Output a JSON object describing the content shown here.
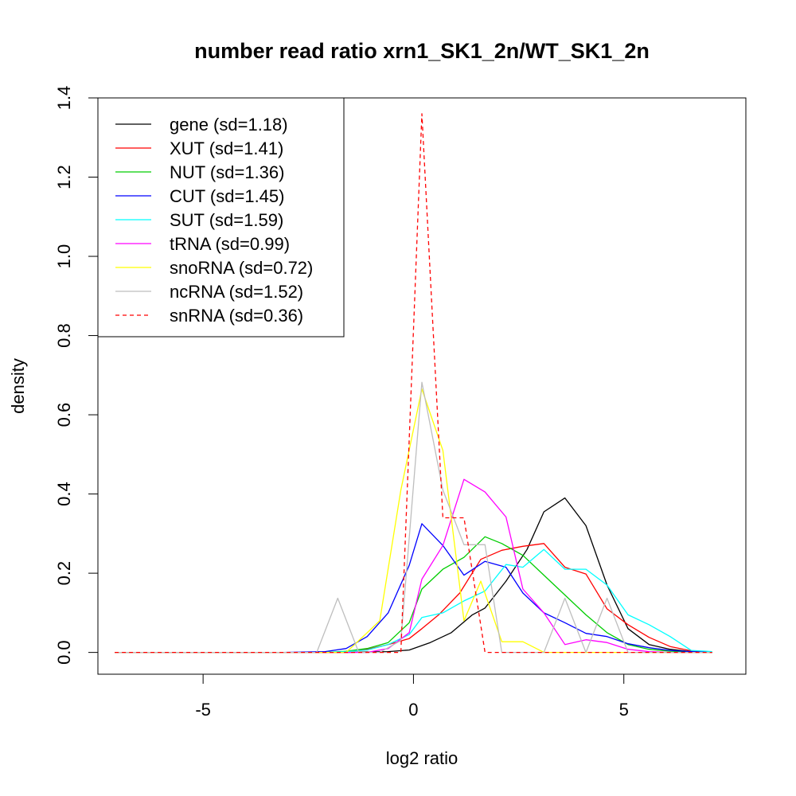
{
  "chart_data": {
    "type": "line",
    "title": "number read ratio xrn1_SK1_2n/WT_SK1_2n",
    "xlabel": "log2 ratio",
    "ylabel": "density",
    "xlim": [
      -7.5,
      7.9
    ],
    "ylim": [
      -0.055,
      1.4
    ],
    "xticks": [
      -5,
      0,
      5
    ],
    "xtick_labels": [
      "-5",
      "0",
      "5"
    ],
    "yticks": [
      0.0,
      0.2,
      0.4,
      0.6,
      0.8,
      1.0,
      1.2,
      1.4
    ],
    "ytick_labels": [
      "0.0",
      "0.2",
      "0.4",
      "0.6",
      "0.8",
      "1.0",
      "1.2",
      "1.4"
    ],
    "grid": false,
    "legend_position": "top-left",
    "series": [
      {
        "name": "gene (sd=1.18)",
        "color": "#000000",
        "dash": false,
        "x": [
          -7.1,
          -6.6,
          -6.1,
          -5.6,
          -5.1,
          -4.6,
          -4.1,
          -3.6,
          -3.1,
          -2.6,
          -2.1,
          -1.6,
          -1.1,
          -0.6,
          -0.1,
          0.4,
          0.9,
          1.4,
          1.7,
          2.2,
          2.7,
          3.1,
          3.6,
          4.1,
          4.6,
          5.1,
          5.6,
          6.1,
          6.6,
          7.1
        ],
        "y": [
          0,
          0,
          0,
          0,
          0,
          0,
          0,
          0,
          0,
          0,
          0,
          0,
          0.001,
          0.002,
          0.006,
          0.025,
          0.05,
          0.095,
          0.112,
          0.18,
          0.26,
          0.355,
          0.39,
          0.32,
          0.17,
          0.06,
          0.02,
          0.008,
          0.002,
          0
        ]
      },
      {
        "name": "XUT (sd=1.41)",
        "color": "#ff0000",
        "dash": false,
        "x": [
          -7.1,
          -6.6,
          -6.1,
          -5.6,
          -5.1,
          -4.6,
          -4.1,
          -3.6,
          -3.1,
          -2.6,
          -2.1,
          -1.6,
          -1.1,
          -0.6,
          -0.1,
          0.2,
          0.6,
          1.1,
          1.6,
          2.1,
          2.6,
          3.1,
          3.6,
          4.1,
          4.6,
          5.1,
          5.6,
          6.1,
          6.6,
          7.1
        ],
        "y": [
          0,
          0,
          0,
          0,
          0,
          0,
          0,
          0,
          0,
          0,
          0,
          0.002,
          0.008,
          0.02,
          0.035,
          0.06,
          0.095,
          0.15,
          0.235,
          0.258,
          0.268,
          0.275,
          0.215,
          0.198,
          0.11,
          0.07,
          0.038,
          0.015,
          0.004,
          0
        ]
      },
      {
        "name": "NUT (sd=1.36)",
        "color": "#00cd00",
        "dash": false,
        "x": [
          -7.1,
          -6.6,
          -6.1,
          -5.6,
          -5.1,
          -4.6,
          -4.1,
          -3.6,
          -3.1,
          -2.6,
          -2.1,
          -1.6,
          -1.1,
          -0.6,
          -0.1,
          0.2,
          0.7,
          1.2,
          1.7,
          2.1,
          2.6,
          3.1,
          3.6,
          4.1,
          4.6,
          5.1,
          5.6,
          6.1,
          6.6,
          7.1
        ],
        "y": [
          0,
          0,
          0,
          0,
          0,
          0,
          0,
          0,
          0,
          0,
          0,
          0.003,
          0.01,
          0.025,
          0.075,
          0.16,
          0.21,
          0.24,
          0.292,
          0.275,
          0.245,
          0.195,
          0.145,
          0.095,
          0.05,
          0.02,
          0.008,
          0.003,
          0.001,
          0
        ]
      },
      {
        "name": "CUT (sd=1.45)",
        "color": "#0000ff",
        "dash": false,
        "x": [
          -7.1,
          -6.6,
          -6.1,
          -5.6,
          -5.1,
          -4.6,
          -4.1,
          -3.6,
          -3.1,
          -2.6,
          -2.1,
          -1.6,
          -1.1,
          -0.6,
          -0.1,
          0.2,
          0.7,
          1.2,
          1.7,
          2.2,
          2.6,
          3.1,
          3.6,
          4.1,
          4.6,
          5.1,
          5.6,
          6.1,
          6.6,
          7.1
        ],
        "y": [
          0,
          0,
          0,
          0,
          0,
          0,
          0,
          0,
          0,
          0.001,
          0.002,
          0.01,
          0.04,
          0.1,
          0.22,
          0.325,
          0.27,
          0.195,
          0.23,
          0.215,
          0.15,
          0.1,
          0.075,
          0.048,
          0.04,
          0.022,
          0.012,
          0.005,
          0.002,
          0
        ]
      },
      {
        "name": "SUT (sd=1.59)",
        "color": "#00ffff",
        "dash": false,
        "x": [
          -7.1,
          -6.6,
          -6.1,
          -5.6,
          -5.1,
          -4.6,
          -4.1,
          -3.6,
          -3.1,
          -2.6,
          -2.1,
          -1.6,
          -1.1,
          -0.6,
          -0.1,
          0.2,
          0.7,
          1.2,
          1.7,
          2.2,
          2.6,
          3.1,
          3.6,
          4.1,
          4.6,
          5.1,
          5.6,
          6.1,
          6.6,
          7.1
        ],
        "y": [
          0,
          0,
          0,
          0,
          0,
          0,
          0,
          0,
          0,
          0,
          0,
          0.002,
          0.006,
          0.02,
          0.045,
          0.088,
          0.1,
          0.13,
          0.155,
          0.222,
          0.215,
          0.26,
          0.21,
          0.21,
          0.17,
          0.095,
          0.07,
          0.04,
          0.005,
          0.002
        ]
      },
      {
        "name": "tRNA (sd=0.99)",
        "color": "#ff00ff",
        "dash": false,
        "x": [
          -7.1,
          -6.6,
          -6.1,
          -5.6,
          -5.1,
          -4.6,
          -4.1,
          -3.6,
          -3.1,
          -2.6,
          -2.1,
          -1.6,
          -1.1,
          -0.6,
          -0.1,
          0.2,
          0.7,
          1.2,
          1.7,
          2.2,
          2.6,
          3.1,
          3.6,
          4.1,
          4.6,
          5.1,
          5.6,
          6.1,
          6.6,
          7.1
        ],
        "y": [
          0,
          0,
          0,
          0,
          0,
          0,
          0,
          0,
          0,
          0,
          0,
          0,
          0,
          0.01,
          0.05,
          0.185,
          0.27,
          0.437,
          0.405,
          0.342,
          0.16,
          0.1,
          0.02,
          0.032,
          0.025,
          0.008,
          0.002,
          0,
          0,
          0
        ]
      },
      {
        "name": "snoRNA (sd=0.72)",
        "color": "#ffff00",
        "dash": false,
        "x": [
          -7.1,
          -6.6,
          -6.1,
          -5.6,
          -5.1,
          -4.6,
          -4.1,
          -3.6,
          -3.1,
          -2.6,
          -2.1,
          -1.6,
          -1.1,
          -0.8,
          -0.3,
          0.2,
          0.7,
          1.2,
          1.6,
          2.1,
          2.6,
          3.1,
          3.6,
          4.1,
          4.6,
          5.1,
          5.6,
          6.1,
          6.6,
          7.1
        ],
        "y": [
          0,
          0,
          0,
          0,
          0,
          0,
          0,
          0,
          0,
          0,
          0,
          0,
          0.05,
          0.08,
          0.41,
          0.665,
          0.51,
          0.08,
          0.18,
          0.027,
          0.027,
          0,
          0,
          0,
          0,
          0,
          0,
          0,
          0,
          0
        ]
      },
      {
        "name": "ncRNA (sd=1.52)",
        "color": "#bebebe",
        "dash": false,
        "x": [
          -7.1,
          -6.6,
          -6.1,
          -5.6,
          -5.1,
          -4.6,
          -4.1,
          -3.6,
          -3.1,
          -2.6,
          -2.3,
          -1.8,
          -1.3,
          -0.8,
          -0.3,
          0.2,
          0.7,
          1.2,
          1.7,
          2.1,
          2.6,
          3.1,
          3.6,
          4.1,
          4.6,
          5.1,
          5.6,
          6.1,
          6.6,
          7.1
        ],
        "y": [
          0,
          0,
          0,
          0,
          0,
          0,
          0,
          0,
          0,
          0,
          0,
          0.137,
          0,
          0,
          0.03,
          0.682,
          0.41,
          0.272,
          0.272,
          0,
          0,
          0,
          0.137,
          0,
          0.137,
          0,
          0,
          0,
          0,
          0
        ]
      },
      {
        "name": "snRNA (sd=0.36)",
        "color": "#ff0000",
        "dash": true,
        "x": [
          -7.1,
          -6.1,
          -5.1,
          -4.1,
          -3.1,
          -2.1,
          -1.1,
          -0.3,
          -0.2,
          0.2,
          0.7,
          0.8,
          1.2,
          1.7,
          2.2,
          3.2,
          4.2,
          5.2,
          6.2,
          7.1
        ],
        "y": [
          0,
          0,
          0,
          0,
          0,
          0,
          0,
          0,
          0.27,
          1.36,
          0.34,
          0.34,
          0.34,
          0,
          0,
          0,
          0,
          0,
          0,
          0
        ]
      }
    ]
  }
}
